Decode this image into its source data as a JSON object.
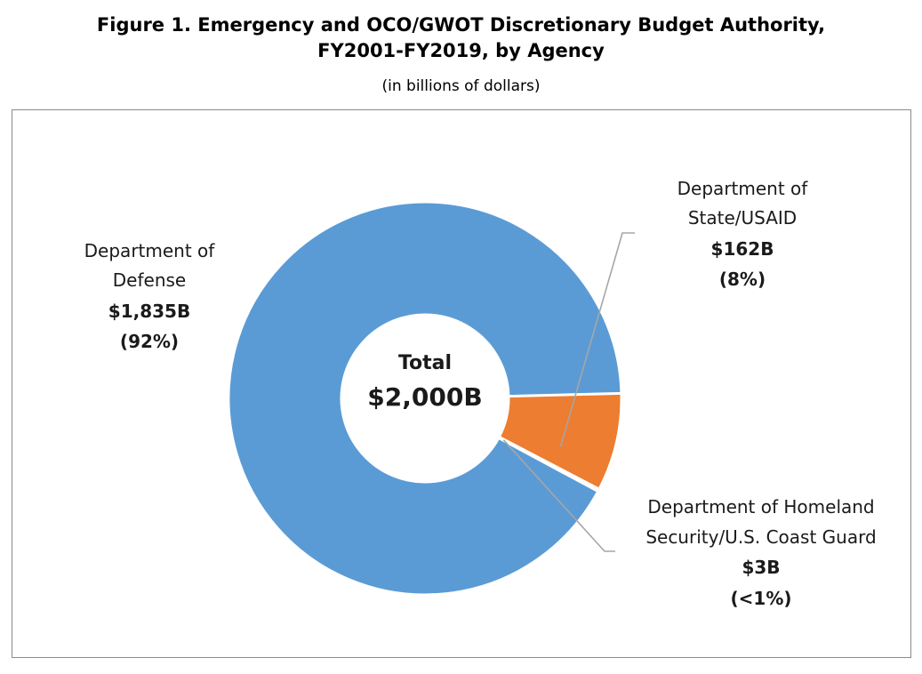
{
  "header": {
    "title_line1": "Figure 1. Emergency and OCO/GWOT Discretionary Budget Authority,",
    "title_line2": "FY2001-FY2019, by Agency",
    "subtitle": "(in billions of dollars)"
  },
  "chart_data": {
    "type": "pie",
    "donut": true,
    "center_label": "Total",
    "center_value": "$2,000B",
    "slices": [
      {
        "name_lines": [
          "Department of",
          "Defense"
        ],
        "value": 1835,
        "value_label": "$1,835B",
        "pct_label": "(92%)",
        "color": "#5b9bd5"
      },
      {
        "name_lines": [
          "Department of",
          "State/USAID"
        ],
        "value": 162,
        "value_label": "$162B",
        "pct_label": "(8%)",
        "color": "#ed7d31"
      },
      {
        "name_lines": [
          "Department of Homeland",
          "Security/U.S. Coast Guard"
        ],
        "value": 3,
        "value_label": "$3B",
        "pct_label": "(<1%)",
        "color": "#a5a5a5"
      }
    ]
  }
}
